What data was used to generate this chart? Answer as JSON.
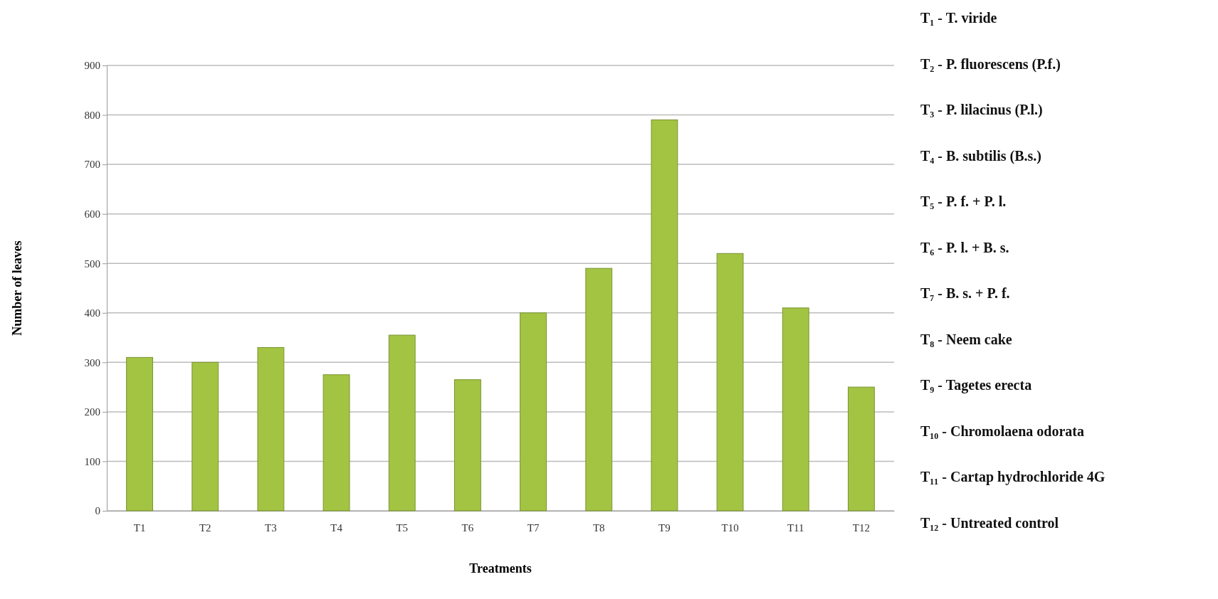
{
  "chart_data": {
    "type": "bar",
    "xlabel": "Treatments",
    "ylabel": "Number of leaves",
    "categories": [
      "T1",
      "T2",
      "T3",
      "T4",
      "T5",
      "T6",
      "T7",
      "T8",
      "T9",
      "T10",
      "T11",
      "T12"
    ],
    "values": [
      310,
      300,
      330,
      275,
      355,
      265,
      400,
      490,
      790,
      520,
      410,
      250
    ],
    "color": "#a3c443",
    "ylim": [
      0,
      900
    ],
    "yticks": [
      0,
      100,
      200,
      300,
      400,
      500,
      600,
      700,
      800,
      900
    ],
    "grid": "y",
    "annotations": [
      "T₁ - T. viride",
      "T₂ - P. fluorescens (P.f.)",
      "T₃ - P. lilacinus (P.l.)",
      "T₄ - B. subtilis (B.s.)",
      "T₅ - P. f. + P. l.",
      "T₆ - P. l. + B. s.",
      "T₇ - B. s. + P. f.",
      "T₈ - Neem cake",
      "T₉ - Tagetes erecta",
      "T₁₀ - Chromolaena odorata",
      "T₁₁ - Cartap hydrochloride 4G",
      "T₁₂ - Untreated control"
    ]
  }
}
